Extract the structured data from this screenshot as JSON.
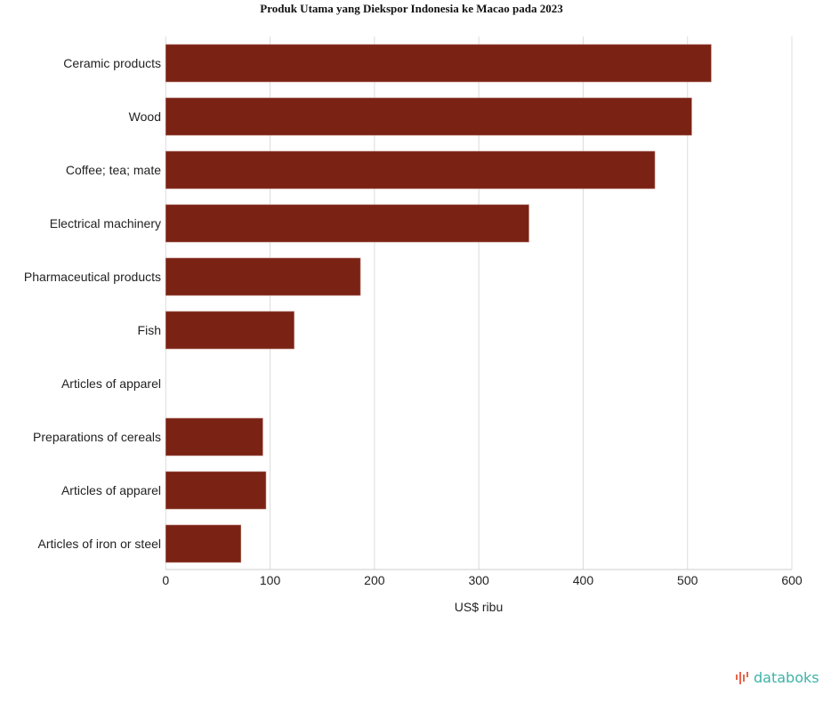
{
  "chart_data": {
    "type": "bar",
    "orientation": "horizontal",
    "title": "Produk Utama yang Diekspor Indonesia ke Macao pada 2023",
    "xlabel": "US$ ribu",
    "ylabel": "",
    "categories": [
      "Ceramic products",
      "Wood",
      "Coffee; tea; mate",
      "Electrical machinery",
      "Pharmaceutical products",
      "Fish",
      "Articles of apparel",
      "Preparations of cereals",
      "Articles of apparel",
      "Articles of iron or steel"
    ],
    "values": [
      522.7,
      504,
      468.7,
      348,
      186.5,
      123,
      0,
      93,
      96,
      72
    ],
    "xlim": [
      0,
      600
    ],
    "xticks": [
      0,
      100,
      200,
      300,
      400,
      500,
      600
    ],
    "grid": true,
    "bar_color": "#7a2214"
  },
  "brand": {
    "logo_text": "databoks",
    "logo_color": "#3fb3a8",
    "icon_color": "#e8654a"
  }
}
